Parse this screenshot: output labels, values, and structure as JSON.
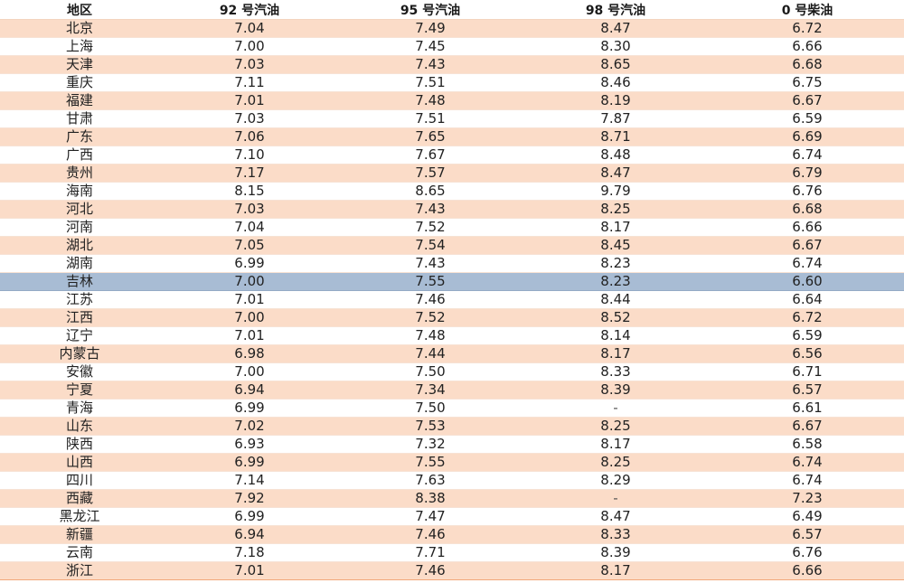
{
  "table": {
    "headers": [
      "地区",
      "92 号汽油",
      "95 号汽油",
      "98 号汽油",
      "0 号柴油"
    ],
    "selected_row": 14,
    "rows": [
      [
        "北京",
        "7.04",
        "7.49",
        "8.47",
        "6.72"
      ],
      [
        "上海",
        "7.00",
        "7.45",
        "8.30",
        "6.66"
      ],
      [
        "天津",
        "7.03",
        "7.43",
        "8.65",
        "6.68"
      ],
      [
        "重庆",
        "7.11",
        "7.51",
        "8.46",
        "6.75"
      ],
      [
        "福建",
        "7.01",
        "7.48",
        "8.19",
        "6.67"
      ],
      [
        "甘肃",
        "7.03",
        "7.51",
        "7.87",
        "6.59"
      ],
      [
        "广东",
        "7.06",
        "7.65",
        "8.71",
        "6.69"
      ],
      [
        "广西",
        "7.10",
        "7.67",
        "8.48",
        "6.74"
      ],
      [
        "贵州",
        "7.17",
        "7.57",
        "8.47",
        "6.79"
      ],
      [
        "海南",
        "8.15",
        "8.65",
        "9.79",
        "6.76"
      ],
      [
        "河北",
        "7.03",
        "7.43",
        "8.25",
        "6.68"
      ],
      [
        "河南",
        "7.04",
        "7.52",
        "8.17",
        "6.66"
      ],
      [
        "湖北",
        "7.05",
        "7.54",
        "8.45",
        "6.67"
      ],
      [
        "湖南",
        "6.99",
        "7.43",
        "8.23",
        "6.74"
      ],
      [
        "吉林",
        "7.00",
        "7.55",
        "8.23",
        "6.60"
      ],
      [
        "江苏",
        "7.01",
        "7.46",
        "8.44",
        "6.64"
      ],
      [
        "江西",
        "7.00",
        "7.52",
        "8.52",
        "6.72"
      ],
      [
        "辽宁",
        "7.01",
        "7.48",
        "8.14",
        "6.59"
      ],
      [
        "内蒙古",
        "6.98",
        "7.44",
        "8.17",
        "6.56"
      ],
      [
        "安徽",
        "7.00",
        "7.50",
        "8.33",
        "6.71"
      ],
      [
        "宁夏",
        "6.94",
        "7.34",
        "8.39",
        "6.57"
      ],
      [
        "青海",
        "6.99",
        "7.50",
        "-",
        "6.61"
      ],
      [
        "山东",
        "7.02",
        "7.53",
        "8.25",
        "6.67"
      ],
      [
        "陕西",
        "6.93",
        "7.32",
        "8.17",
        "6.58"
      ],
      [
        "山西",
        "6.99",
        "7.55",
        "8.25",
        "6.74"
      ],
      [
        "四川",
        "7.14",
        "7.63",
        "8.29",
        "6.74"
      ],
      [
        "西藏",
        "7.92",
        "8.38",
        "-",
        "7.23"
      ],
      [
        "黑龙江",
        "6.99",
        "7.47",
        "8.47",
        "6.49"
      ],
      [
        "新疆",
        "6.94",
        "7.46",
        "8.33",
        "6.57"
      ],
      [
        "云南",
        "7.18",
        "7.71",
        "8.39",
        "6.76"
      ],
      [
        "浙江",
        "7.01",
        "7.46",
        "8.17",
        "6.66"
      ]
    ]
  },
  "colors": {
    "band": "#fbdcc8",
    "selected": "#a8bcd4",
    "rule": "#f2a77a"
  }
}
